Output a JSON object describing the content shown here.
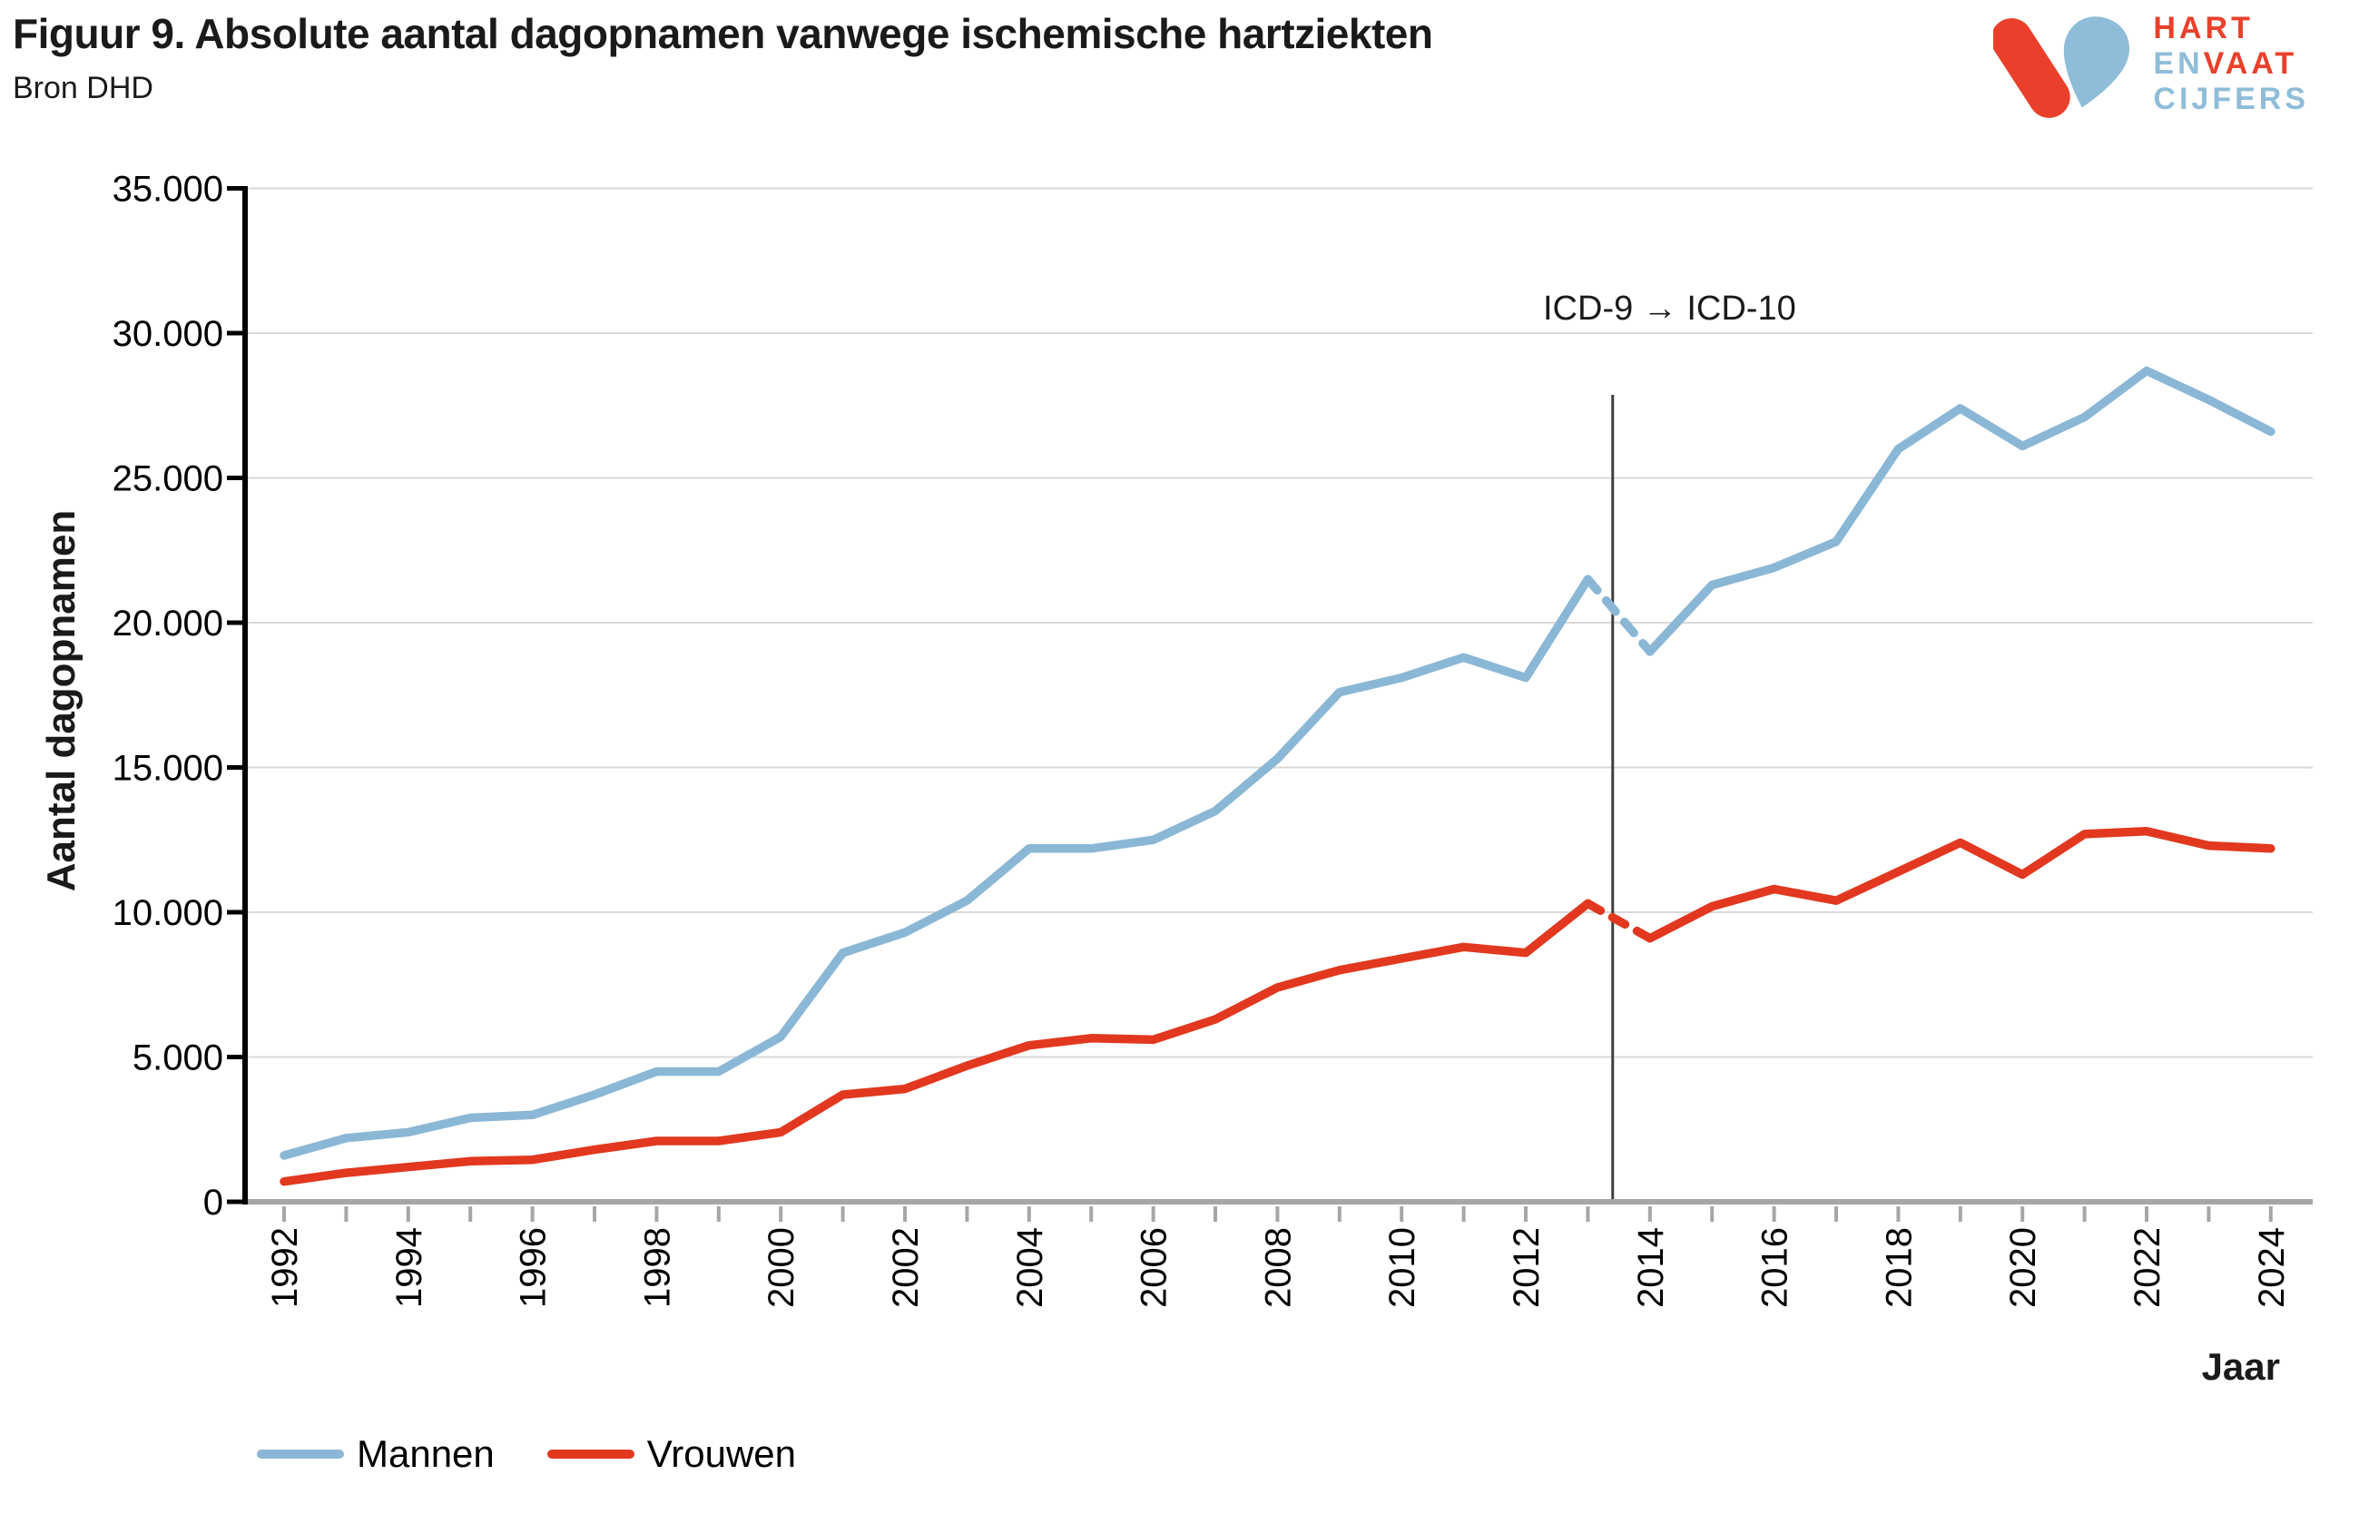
{
  "header": {
    "title": "Figuur 9. Absolute aantal dagopnamen vanwege ischemische hartziekten",
    "source": "Bron DHD"
  },
  "logo": {
    "word1": "HART",
    "word2a": "EN",
    "word2b": "VAAT",
    "word3": "CIJFERS"
  },
  "colors": {
    "mannen_blue": "#8bb7d6",
    "vrouwen_red": "#e2381f",
    "gridline": "#d9d9d9",
    "x_axis": "#a6a6a6",
    "y_axis": "#000000",
    "vline": "#3f3f3f",
    "text": "#1a1a1a",
    "logo_red": "#ea402b",
    "logo_blue": "#8fbdd9"
  },
  "chart_data": {
    "type": "line",
    "title": "Figuur 9. Absolute aantal dagopnamen vanwege ischemische hartziekten",
    "xlabel": "Jaar",
    "ylabel": "Aantal dagopnamen",
    "grid": true,
    "legend_position": "bottom-left",
    "ylim": [
      0,
      35000
    ],
    "y_ticks": [
      0,
      5000,
      10000,
      15000,
      20000,
      25000,
      30000,
      35000
    ],
    "y_tick_labels": [
      "0",
      "5.000",
      "10.000",
      "15.000",
      "20.000",
      "25.000",
      "30.000",
      "35.000"
    ],
    "x": [
      1992,
      1993,
      1994,
      1995,
      1996,
      1997,
      1998,
      1999,
      2000,
      2001,
      2002,
      2003,
      2004,
      2005,
      2006,
      2007,
      2008,
      2009,
      2010,
      2011,
      2012,
      2013,
      2014,
      2015,
      2016,
      2017,
      2018,
      2019,
      2020,
      2021,
      2022,
      2023,
      2024
    ],
    "x_tick_labels": [
      "1992",
      "1994",
      "1996",
      "1998",
      "2000",
      "2002",
      "2004",
      "2006",
      "2008",
      "2010",
      "2012",
      "2014",
      "2016",
      "2018",
      "2020",
      "2022",
      "2024"
    ],
    "series": [
      {
        "name": "Mannen",
        "color": "#8bb7d6",
        "dashed_between": [
          2013,
          2014
        ],
        "values": [
          1600,
          2200,
          2400,
          2900,
          3000,
          3700,
          4500,
          4500,
          5700,
          8600,
          9300,
          10400,
          12200,
          12200,
          12500,
          13500,
          15300,
          17600,
          18100,
          18800,
          18100,
          21500,
          19000,
          21300,
          21900,
          22800,
          26000,
          27400,
          26100,
          27100,
          28700,
          27700,
          26600
        ]
      },
      {
        "name": "Vrouwen",
        "color": "#e2381f",
        "dashed_between": [
          2013,
          2014
        ],
        "values": [
          700,
          1000,
          1200,
          1400,
          1450,
          1800,
          2100,
          2100,
          2400,
          3700,
          3900,
          4700,
          5400,
          5650,
          5600,
          6300,
          7400,
          8000,
          8400,
          8800,
          8600,
          10300,
          9100,
          10200,
          10800,
          10400,
          11400,
          12400,
          11300,
          12700,
          12800,
          12300,
          12200
        ]
      }
    ],
    "vline": {
      "x_year": 2013.4,
      "label": "ICD-9 → ICD-10"
    }
  }
}
